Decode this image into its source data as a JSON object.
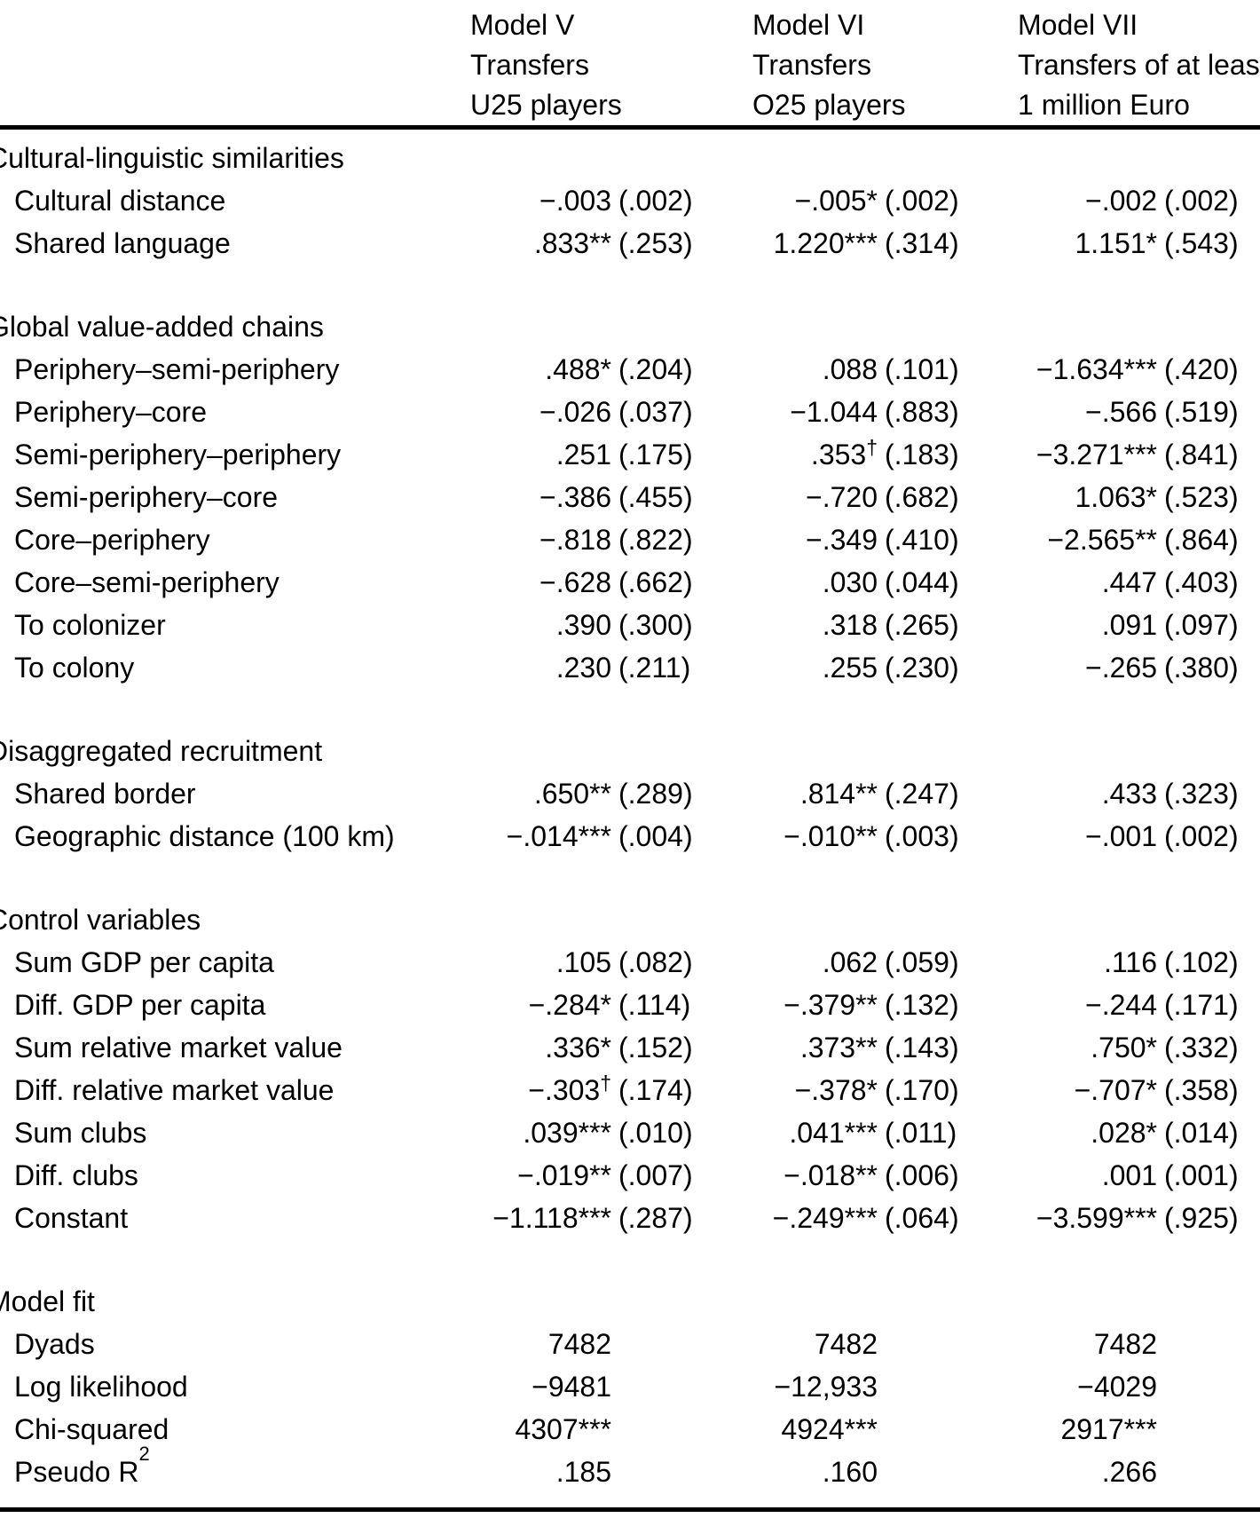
{
  "page": {
    "background_color": "#ffffff",
    "text_color": "#000000",
    "rule_color": "#000000"
  },
  "header": {
    "columns": [
      {
        "id": "model-v",
        "lines": [
          "Model V",
          "Transfers",
          "U25 players"
        ]
      },
      {
        "id": "model-vi",
        "lines": [
          "Model VI",
          "Transfers",
          "O25 players"
        ]
      },
      {
        "id": "model-vii",
        "lines": [
          "Model VII",
          "Transfers of at least",
          "1 million Euro"
        ]
      }
    ]
  },
  "table": {
    "sections": [
      {
        "title": "Cultural-linguistic similarities",
        "rows": [
          {
            "label": "Cultural distance",
            "cells": [
              {
                "c": "−.003",
                "s": "",
                "e": "(.002)"
              },
              {
                "c": "−.005",
                "s": "*",
                "e": "(.002)"
              },
              {
                "c": "−.002",
                "s": "",
                "e": "(.002)"
              }
            ]
          },
          {
            "label": "Shared language",
            "cells": [
              {
                "c": ".833",
                "s": "**",
                "e": "(.253)"
              },
              {
                "c": "1.220",
                "s": "***",
                "e": "(.314)"
              },
              {
                "c": "1.151",
                "s": "*",
                "e": "(.543)"
              }
            ]
          }
        ]
      },
      {
        "title": "Global value-added chains",
        "rows": [
          {
            "label": "Periphery–semi-periphery",
            "cells": [
              {
                "c": ".488",
                "s": "*",
                "e": "(.204)"
              },
              {
                "c": ".088",
                "s": "",
                "e": "(.101)"
              },
              {
                "c": "−1.634",
                "s": "***",
                "e": "(.420)"
              }
            ]
          },
          {
            "label": "Periphery–core",
            "cells": [
              {
                "c": "−.026",
                "s": "",
                "e": "(.037)"
              },
              {
                "c": "−1.044",
                "s": "",
                "e": "(.883)"
              },
              {
                "c": "−.566",
                "s": "",
                "e": "(.519)"
              }
            ]
          },
          {
            "label": "Semi-periphery–periphery",
            "cells": [
              {
                "c": ".251",
                "s": "",
                "e": "(.175)"
              },
              {
                "c": ".353",
                "s": "†",
                "e": "(.183)"
              },
              {
                "c": "−3.271",
                "s": "***",
                "e": "(.841)"
              }
            ]
          },
          {
            "label": "Semi-periphery–core",
            "cells": [
              {
                "c": "−.386",
                "s": "",
                "e": "(.455)"
              },
              {
                "c": "−.720",
                "s": "",
                "e": "(.682)"
              },
              {
                "c": "1.063",
                "s": "*",
                "e": "(.523)"
              }
            ]
          },
          {
            "label": "Core–periphery",
            "cells": [
              {
                "c": "−.818",
                "s": "",
                "e": "(.822)"
              },
              {
                "c": "−.349",
                "s": "",
                "e": "(.410)"
              },
              {
                "c": "−2.565",
                "s": "**",
                "e": "(.864)"
              }
            ]
          },
          {
            "label": "Core–semi-periphery",
            "cells": [
              {
                "c": "−.628",
                "s": "",
                "e": "(.662)"
              },
              {
                "c": ".030",
                "s": "",
                "e": "(.044)"
              },
              {
                "c": ".447",
                "s": "",
                "e": "(.403)"
              }
            ]
          },
          {
            "label": "To colonizer",
            "cells": [
              {
                "c": ".390",
                "s": "",
                "e": "(.300)"
              },
              {
                "c": ".318",
                "s": "",
                "e": "(.265)"
              },
              {
                "c": ".091",
                "s": "",
                "e": "(.097)"
              }
            ]
          },
          {
            "label": "To colony",
            "cells": [
              {
                "c": ".230",
                "s": "",
                "e": "(.211)"
              },
              {
                "c": ".255",
                "s": "",
                "e": "(.230)"
              },
              {
                "c": "−.265",
                "s": "",
                "e": "(.380)"
              }
            ]
          }
        ]
      },
      {
        "title": "Disaggregated recruitment",
        "rows": [
          {
            "label": "Shared border",
            "cells": [
              {
                "c": ".650",
                "s": "**",
                "e": "(.289)"
              },
              {
                "c": ".814",
                "s": "**",
                "e": "(.247)"
              },
              {
                "c": ".433",
                "s": "",
                "e": "(.323)"
              }
            ]
          },
          {
            "label": "Geographic distance (100 km)",
            "cells": [
              {
                "c": "−.014",
                "s": "***",
                "e": "(.004)"
              },
              {
                "c": "−.010",
                "s": "**",
                "e": "(.003)"
              },
              {
                "c": "−.001",
                "s": "",
                "e": "(.002)"
              }
            ]
          }
        ]
      },
      {
        "title": "Control variables",
        "rows": [
          {
            "label": "Sum GDP per capita",
            "cells": [
              {
                "c": ".105",
                "s": "",
                "e": "(.082)"
              },
              {
                "c": ".062",
                "s": "",
                "e": "(.059)"
              },
              {
                "c": ".116",
                "s": "",
                "e": "(.102)"
              }
            ]
          },
          {
            "label": "Diff. GDP per capita",
            "cells": [
              {
                "c": "−.284",
                "s": "*",
                "e": "(.114)"
              },
              {
                "c": "−.379",
                "s": "**",
                "e": "(.132)"
              },
              {
                "c": "−.244",
                "s": "",
                "e": "(.171)"
              }
            ]
          },
          {
            "label": "Sum relative market value",
            "cells": [
              {
                "c": ".336",
                "s": "*",
                "e": "(.152)"
              },
              {
                "c": ".373",
                "s": "**",
                "e": "(.143)"
              },
              {
                "c": ".750",
                "s": "*",
                "e": "(.332)"
              }
            ]
          },
          {
            "label": "Diff. relative market value",
            "cells": [
              {
                "c": "−.303",
                "s": "†",
                "e": "(.174)"
              },
              {
                "c": "−.378",
                "s": "*",
                "e": "(.170)"
              },
              {
                "c": "−.707",
                "s": "*",
                "e": "(.358)"
              }
            ]
          },
          {
            "label": "Sum clubs",
            "cells": [
              {
                "c": ".039",
                "s": "***",
                "e": "(.010)"
              },
              {
                "c": ".041",
                "s": "***",
                "e": "(.011)"
              },
              {
                "c": ".028",
                "s": "*",
                "e": "(.014)"
              }
            ]
          },
          {
            "label": "Diff. clubs",
            "cells": [
              {
                "c": "−.019",
                "s": "**",
                "e": "(.007)"
              },
              {
                "c": "−.018",
                "s": "**",
                "e": "(.006)"
              },
              {
                "c": ".001",
                "s": "",
                "e": "(.001)"
              }
            ]
          },
          {
            "label": "Constant",
            "cells": [
              {
                "c": "−1.118",
                "s": "***",
                "e": "(.287)"
              },
              {
                "c": "−.249",
                "s": "***",
                "e": "(.064)"
              },
              {
                "c": "−3.599",
                "s": "***",
                "e": "(.925)"
              }
            ]
          }
        ]
      },
      {
        "title": "Model fit",
        "rows": [
          {
            "label": "Dyads",
            "cells": [
              {
                "c": "7482",
                "s": "",
                "e": ""
              },
              {
                "c": "7482",
                "s": "",
                "e": ""
              },
              {
                "c": "7482",
                "s": "",
                "e": ""
              }
            ]
          },
          {
            "label": "Log likelihood",
            "cells": [
              {
                "c": "−9481",
                "s": "",
                "e": ""
              },
              {
                "c": "−12,933",
                "s": "",
                "e": ""
              },
              {
                "c": "−4029",
                "s": "",
                "e": ""
              }
            ]
          },
          {
            "label": "Chi-squared",
            "cells": [
              {
                "c": "4307",
                "s": "***",
                "e": ""
              },
              {
                "c": "4924",
                "s": "***",
                "e": ""
              },
              {
                "c": "2917",
                "s": "***",
                "e": ""
              }
            ]
          },
          {
            "label": "Pseudo R",
            "label_sup": "2",
            "cells": [
              {
                "c": ".185",
                "s": "",
                "e": ""
              },
              {
                "c": ".160",
                "s": "",
                "e": ""
              },
              {
                "c": ".266",
                "s": "",
                "e": ""
              }
            ]
          }
        ]
      }
    ]
  }
}
